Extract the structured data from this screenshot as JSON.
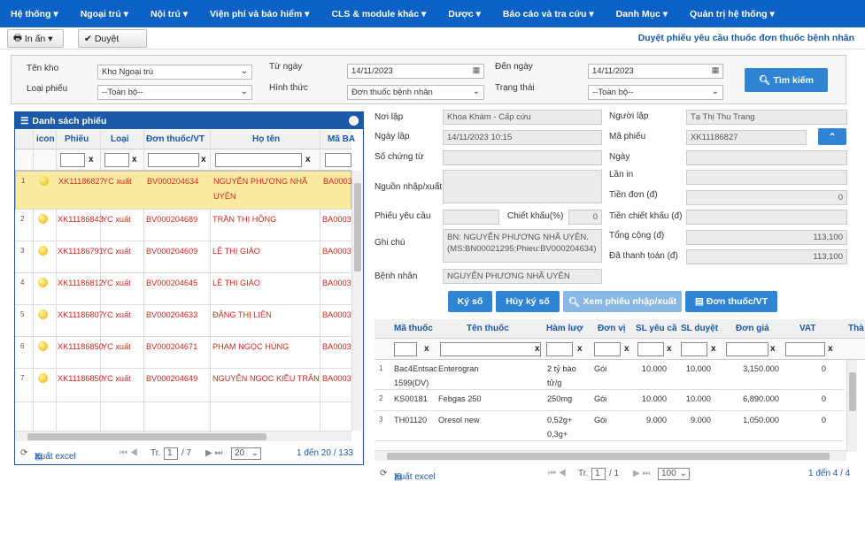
{
  "nav": [
    "Hệ thống ▾",
    "Ngoại trú ▾",
    "Nội trú ▾",
    "Viện phí và bảo hiểm ▾",
    "CLS & module khác ▾",
    "Dược ▾",
    "Báo cáo và tra cứu ▾",
    "Danh Mục ▾",
    "Quản trị hệ thống ▾"
  ],
  "toolbar": {
    "print_label": "In ấn ▾",
    "approve_label": "Duyệt",
    "title": "Duyệt phiếu yêu cầu thuốc đơn thuốc bệnh nhân"
  },
  "filter": {
    "kho_label": "Tên kho",
    "kho_value": "Kho Ngoại trú",
    "loaiphieu_label": "Loại phiếu",
    "loaiphieu_value": "--Toàn bộ--",
    "tungay_label": "Từ ngày",
    "tungay_value": "14/11/2023",
    "hinhthuc_label": "Hình thức",
    "hinhthuc_value": "Đơn thuốc bệnh nhân",
    "denngay_label": "Đến ngày",
    "denngay_value": "14/11/2023",
    "trangthai_label": "Trạng thái",
    "trangthai_value": "--Toàn bộ--",
    "search_label": "Tìm kiếm"
  },
  "list": {
    "title": "Danh sách phiếu",
    "columns": [
      "icon",
      "Phiếu",
      "Loại",
      "Đơn thuốc/VT",
      "Họ tên",
      "Mã BA"
    ],
    "filter_x": "x",
    "rows": [
      {
        "n": "1",
        "phieu": "XK11186827",
        "loai": "YC xuất",
        "don": "BV000204634",
        "ten": "NGUYỄN PHƯƠNG NHÃ UYÊN",
        "ma": "BA0003"
      },
      {
        "n": "2",
        "phieu": "XK11186843",
        "loai": "YC xuất",
        "don": "BV000204689",
        "ten": "TRẦN THỊ HỒNG",
        "ma": "BA0003"
      },
      {
        "n": "3",
        "phieu": "XK11186791",
        "loai": "YC xuất",
        "don": "BV000204609",
        "ten": "LÊ THỊ GIÁO",
        "ma": "BA0003"
      },
      {
        "n": "4",
        "phieu": "XK11186812",
        "loai": "YC xuất",
        "don": "BV000204645",
        "ten": "LÊ THỊ GIÁO",
        "ma": "BA0003"
      },
      {
        "n": "5",
        "phieu": "XK11186807",
        "loai": "YC xuất",
        "don": "BV000204633",
        "ten": "ĐẶNG THỊ LIÊN",
        "ma": "BA0003"
      },
      {
        "n": "6",
        "phieu": "XK11186850",
        "loai": "YC xuất",
        "don": "BV000204671",
        "ten": "PHẠM NGỌC HÙNG",
        "ma": "BA0003"
      },
      {
        "n": "7",
        "phieu": "XK11186850",
        "loai": "YC xuất",
        "don": "BV000204649",
        "ten": "NGUYỄN NGỌC KIỀU TRÂN",
        "ma": "BA0003"
      }
    ],
    "excel_label": "Xuất excel",
    "page_prefix": "Tr.",
    "page_current": "1",
    "page_total": "/ 7",
    "page_size": "20",
    "range": "1 đến 20 / 133"
  },
  "detail": {
    "noilap_label": "Nơi lập",
    "noilap_value": "Khoa Khám - Cấp cứu",
    "nguoilap_label": "Người lập",
    "nguoilap_value": "Tạ Thị Thu Trang",
    "ngaylap_label": "Ngày lập",
    "ngaylap_value": "14/11/2023 10:15",
    "maphieu_label": "Mã phiếu",
    "maphieu_value": "XK11186827",
    "sochungtu_label": "Số chứng từ",
    "ngay_label": "Ngày",
    "nguon_label": "Nguồn nhập/xuất",
    "lanin_label": "Lần in",
    "tiendon_label": "Tiền đơn (đ)",
    "tiendon_value": "0",
    "phieuyc_label": "Phiếu yêu cầu",
    "chietkhau_label": "Chiết khấu(%)",
    "chietkhau_value": "0",
    "tienck_label": "Tiền chiết khấu (đ)",
    "ghichu_label": "Ghi chú",
    "ghichu_value": "BN: NGUYỄN PHƯƠNG NHÃ UYÊN.(MS:BN00021295;Phieu:BV000204634)",
    "tongcong_label": "Tổng cộng (đ)",
    "tongcong_value": "113,100",
    "dathanhtoan_label": "Đã thanh toán (đ)",
    "dathanhtoan_value": "113,100",
    "benhnhan_label": "Bệnh nhân",
    "benhnhan_value": "NGUYỄN PHƯƠNG NHÃ UYÊN"
  },
  "actions": {
    "kyso": "Ký số",
    "huykyso": "Hủy ký số",
    "xemphieu": "Xem phiếu nhập/xuất",
    "donthuoc": "Đơn thuốc/VT"
  },
  "drugs": {
    "columns": [
      "Mã thuốc",
      "Tên thuốc",
      "Hàm lượ",
      "Đơn vị",
      "SL yêu cầ",
      "SL duyệt",
      "Đơn giá",
      "VAT",
      "Thà"
    ],
    "rows": [
      {
        "n": "1",
        "ma": "Bac4Entsac",
        "ma2": "1599(DV)",
        "ten": "Enterogran",
        "ham": "2 tỷ bào",
        "ham2": "tử/g",
        "dv": "Gói",
        "slyc": "10.000",
        "sld": "10.000",
        "gia": "3,150.000",
        "vat": "0"
      },
      {
        "n": "2",
        "ma": "KS00181",
        "ma2": "",
        "ten": "Febgas 250",
        "ham": "250mg",
        "ham2": "",
        "dv": "Gói",
        "slyc": "10.000",
        "sld": "10.000",
        "gia": "6,890.000",
        "vat": "0"
      },
      {
        "n": "3",
        "ma": "TH01120",
        "ma2": "",
        "ten": "Oresol new",
        "ham": "0,52g+",
        "ham2": "0,3g+",
        "dv": "Gói",
        "slyc": "9.000",
        "sld": "9.000",
        "gia": "1,050.000",
        "vat": "0"
      }
    ],
    "excel_label": "Xuất excel",
    "page_prefix": "Tr.",
    "page_current": "1",
    "page_total": "/ 1",
    "page_size": "100",
    "range": "1 đến 4 / 4"
  }
}
